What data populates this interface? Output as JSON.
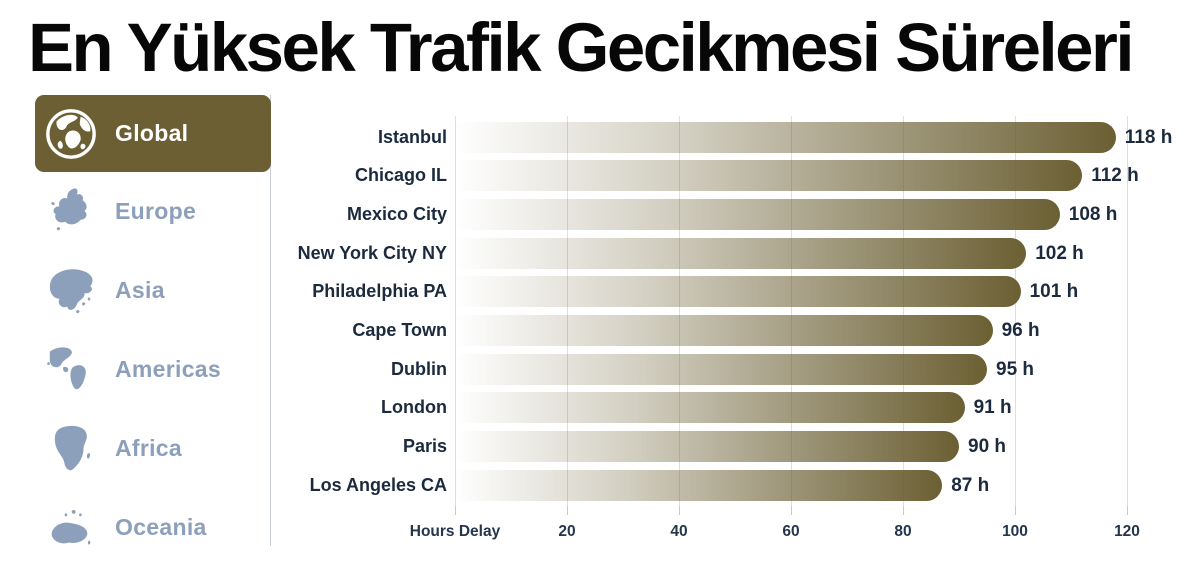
{
  "title": "En Yüksek Trafik Gecikmesi Süreleri",
  "sidebar": {
    "items": [
      {
        "label": "Global",
        "selected": true
      },
      {
        "label": "Europe",
        "selected": false
      },
      {
        "label": "Asia",
        "selected": false
      },
      {
        "label": "Americas",
        "selected": false
      },
      {
        "label": "Africa",
        "selected": false
      },
      {
        "label": "Oceania",
        "selected": false
      }
    ]
  },
  "chart_data": {
    "type": "bar",
    "orientation": "horizontal",
    "title": "En Yüksek Trafik Gecikmesi Süreleri",
    "categories": [
      "Istanbul",
      "Chicago IL",
      "Mexico City",
      "New York City NY",
      "Philadelphia PA",
      "Cape Town",
      "Dublin",
      "London",
      "Paris",
      "Los Angeles CA"
    ],
    "values": [
      118,
      112,
      108,
      102,
      101,
      96,
      95,
      91,
      90,
      87
    ],
    "unit": "h",
    "xlabel": "Hours Delay",
    "xticks": [
      20,
      40,
      60,
      80,
      100,
      120
    ],
    "xlim": [
      0,
      120
    ],
    "grid": true,
    "legend": null
  },
  "colors": {
    "accent_olive": "#6b5f33",
    "bar_gradient_start": "#ffffff",
    "bar_gradient_end": "#6b5f33",
    "sidebar_inactive": "#8da0bb",
    "label_navy": "#1b2a3d",
    "axis_navy": "#24354c",
    "gridline": "#dedede",
    "divider": "#c9ced6",
    "title_black": "#070707"
  }
}
